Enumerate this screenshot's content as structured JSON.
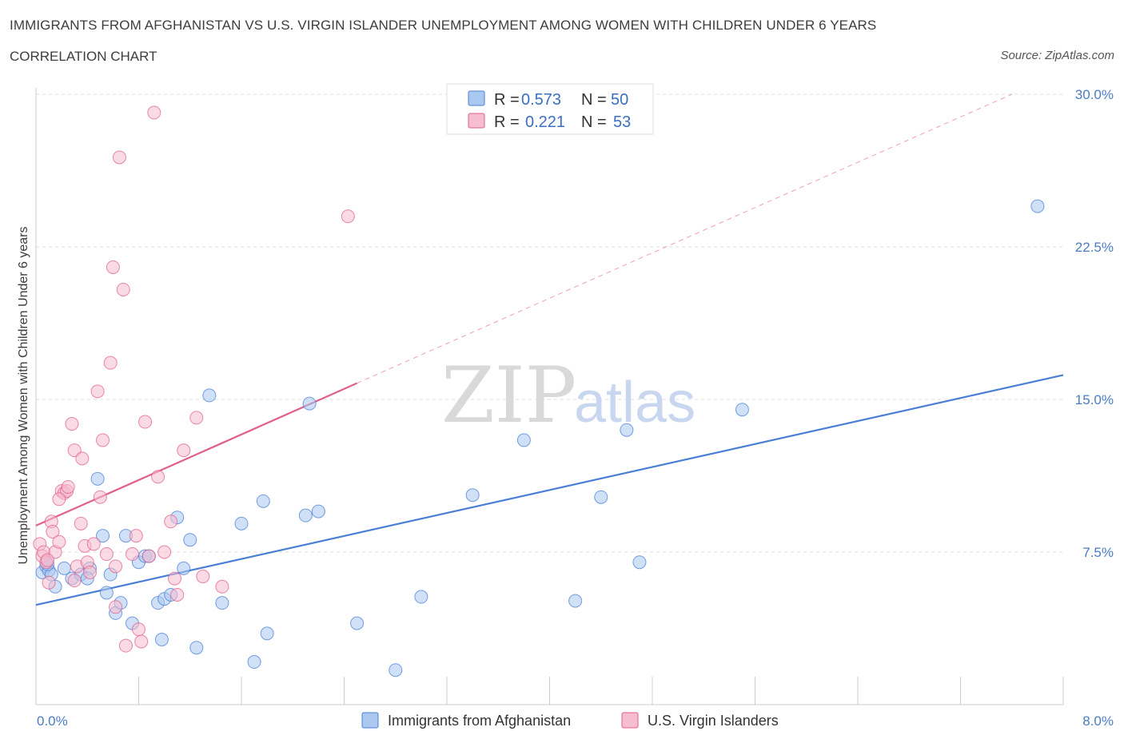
{
  "header": {
    "title": "IMMIGRANTS FROM AFGHANISTAN VS U.S. VIRGIN ISLANDER UNEMPLOYMENT AMONG WOMEN WITH CHILDREN UNDER 6 YEARS",
    "subtitle": "CORRELATION CHART",
    "source": "Source: ZipAtlas.com"
  },
  "watermark": {
    "zip": "ZIP",
    "atlas": "atlas"
  },
  "legend_stats": [
    {
      "r_label": "R =",
      "r_value": "0.573",
      "n_label": "N =",
      "n_value": "50",
      "color": "#aac8f0"
    },
    {
      "r_label": "R =",
      "r_value": "0.221",
      "n_label": "N =",
      "n_value": "53",
      "color": "#f6bcd0"
    }
  ],
  "chart_data": {
    "type": "scatter",
    "ylabel": "Unemployment Among Women with Children Under 6 years",
    "xlim": [
      0,
      8
    ],
    "ylim": [
      0,
      30
    ],
    "x_tick_labels": [
      "0.0%",
      "8.0%"
    ],
    "y_ticks": [
      7.5,
      15.0,
      22.5,
      30.0
    ],
    "y_tick_labels": [
      "7.5%",
      "15.0%",
      "22.5%",
      "30.0%"
    ],
    "grid": true,
    "legend_position": "bottom-center",
    "series": [
      {
        "name": "Immigrants from Afghanistan",
        "color": "#4a7fd4",
        "fill": "#aac8f0",
        "trend": {
          "x": [
            0,
            8
          ],
          "y": [
            4.9,
            16.2
          ],
          "style": "solid"
        },
        "points": [
          [
            0.05,
            6.5
          ],
          [
            0.08,
            6.8
          ],
          [
            0.1,
            6.6
          ],
          [
            0.12,
            6.4
          ],
          [
            0.15,
            5.8
          ],
          [
            0.22,
            6.7
          ],
          [
            0.28,
            6.2
          ],
          [
            0.35,
            6.4
          ],
          [
            0.42,
            6.7
          ],
          [
            0.48,
            11.1
          ],
          [
            0.52,
            8.3
          ],
          [
            0.55,
            5.5
          ],
          [
            0.58,
            6.4
          ],
          [
            0.62,
            4.5
          ],
          [
            0.66,
            5.0
          ],
          [
            0.7,
            8.3
          ],
          [
            0.75,
            4.0
          ],
          [
            0.8,
            7.0
          ],
          [
            0.85,
            7.3
          ],
          [
            0.88,
            7.3
          ],
          [
            0.95,
            5.0
          ],
          [
            0.98,
            3.2
          ],
          [
            1.0,
            5.2
          ],
          [
            1.05,
            5.4
          ],
          [
            1.1,
            9.2
          ],
          [
            1.15,
            6.7
          ],
          [
            1.2,
            8.1
          ],
          [
            1.25,
            2.8
          ],
          [
            1.35,
            15.2
          ],
          [
            1.45,
            5.0
          ],
          [
            1.6,
            8.9
          ],
          [
            1.7,
            2.1
          ],
          [
            1.77,
            10.0
          ],
          [
            1.8,
            3.5
          ],
          [
            2.1,
            9.3
          ],
          [
            2.2,
            9.5
          ],
          [
            2.5,
            4.0
          ],
          [
            2.8,
            1.7
          ],
          [
            3.0,
            5.3
          ],
          [
            3.4,
            10.3
          ],
          [
            3.8,
            13.0
          ],
          [
            4.2,
            5.1
          ],
          [
            4.4,
            10.2
          ],
          [
            4.6,
            13.5
          ],
          [
            4.7,
            7.0
          ],
          [
            5.5,
            14.5
          ],
          [
            2.13,
            14.8
          ],
          [
            0.4,
            6.2
          ],
          [
            0.09,
            6.9
          ],
          [
            7.8,
            24.5
          ]
        ]
      },
      {
        "name": "U.S. Virgin Islanders",
        "color": "#e0608a",
        "fill": "#f6bcd0",
        "trend": {
          "x": [
            0,
            2.5
          ],
          "y": [
            8.8,
            15.8
          ],
          "style": "solid",
          "extend_to": [
            7.6,
            30.0
          ]
        },
        "points": [
          [
            0.03,
            7.9
          ],
          [
            0.05,
            7.3
          ],
          [
            0.06,
            7.5
          ],
          [
            0.08,
            7.0
          ],
          [
            0.1,
            6.0
          ],
          [
            0.12,
            9.0
          ],
          [
            0.13,
            8.5
          ],
          [
            0.15,
            7.5
          ],
          [
            0.18,
            8.0
          ],
          [
            0.2,
            10.5
          ],
          [
            0.22,
            10.4
          ],
          [
            0.24,
            10.5
          ],
          [
            0.25,
            10.7
          ],
          [
            0.28,
            13.8
          ],
          [
            0.3,
            12.5
          ],
          [
            0.32,
            6.8
          ],
          [
            0.35,
            8.9
          ],
          [
            0.36,
            12.1
          ],
          [
            0.38,
            7.8
          ],
          [
            0.4,
            7.0
          ],
          [
            0.42,
            6.5
          ],
          [
            0.45,
            7.9
          ],
          [
            0.48,
            15.4
          ],
          [
            0.5,
            10.2
          ],
          [
            0.52,
            13.0
          ],
          [
            0.55,
            7.4
          ],
          [
            0.58,
            16.8
          ],
          [
            0.6,
            21.5
          ],
          [
            0.62,
            6.8
          ],
          [
            0.65,
            26.9
          ],
          [
            0.68,
            20.4
          ],
          [
            0.7,
            2.9
          ],
          [
            0.75,
            7.4
          ],
          [
            0.78,
            8.3
          ],
          [
            0.8,
            3.7
          ],
          [
            0.82,
            3.1
          ],
          [
            0.85,
            13.9
          ],
          [
            0.88,
            7.3
          ],
          [
            0.92,
            29.1
          ],
          [
            0.95,
            11.2
          ],
          [
            1.0,
            7.5
          ],
          [
            1.05,
            9.0
          ],
          [
            1.08,
            6.2
          ],
          [
            1.1,
            5.4
          ],
          [
            1.15,
            12.5
          ],
          [
            1.25,
            14.1
          ],
          [
            1.3,
            6.3
          ],
          [
            1.45,
            5.8
          ],
          [
            0.62,
            4.8
          ],
          [
            0.3,
            6.1
          ],
          [
            0.18,
            10.1
          ],
          [
            0.09,
            7.1
          ],
          [
            2.43,
            24.0
          ]
        ]
      }
    ]
  },
  "bottom_legend": [
    {
      "label": "Immigrants from Afghanistan",
      "color": "#aac8f0",
      "border": "#4a7fd4"
    },
    {
      "label": "U.S. Virgin Islanders",
      "color": "#f6bcd0",
      "border": "#e0608a"
    }
  ]
}
